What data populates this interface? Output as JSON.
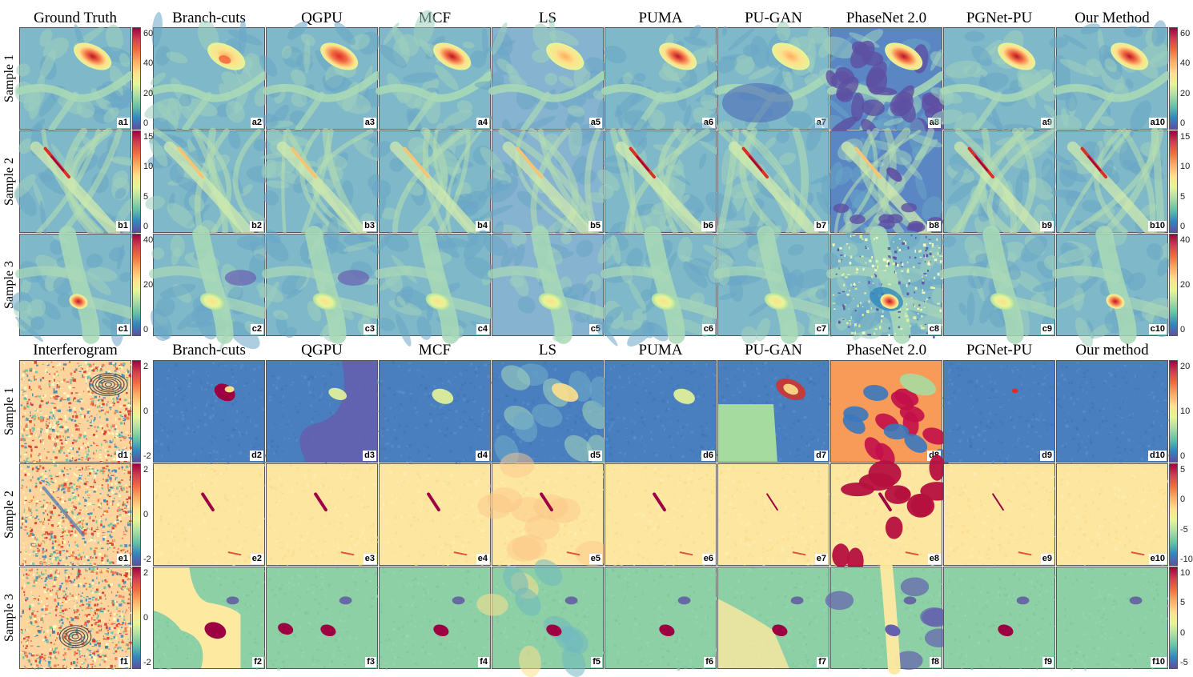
{
  "colors": {
    "spectral": [
      "#5e4fa2",
      "#3288bd",
      "#66c2a5",
      "#abdda4",
      "#e6f598",
      "#fee08b",
      "#fdae61",
      "#f46d43",
      "#d53e4f",
      "#9e0142"
    ],
    "panel_border": "#555555"
  },
  "top": {
    "headers": [
      "Ground Truth",
      "Branch-cuts",
      "QGPU",
      "MCF",
      "LS",
      "PUMA",
      "PU-GAN",
      "PhaseNet 2.0",
      "PGNet-PU",
      "Our Method"
    ],
    "rows": [
      {
        "label": "Sample 1",
        "prefix": "a",
        "left_ticks": [
          "60",
          "40",
          "20",
          "0"
        ],
        "right_ticks": [
          "60",
          "40",
          "20",
          "0"
        ]
      },
      {
        "label": "Sample 2",
        "prefix": "b",
        "left_ticks": [
          "15",
          "10",
          "5",
          "0"
        ],
        "right_ticks": [
          "15",
          "10",
          "5",
          "0"
        ]
      },
      {
        "label": "Sample 3",
        "prefix": "c",
        "left_ticks": [
          "40",
          "20",
          "0"
        ],
        "right_ticks": [
          "40",
          "20",
          "0"
        ]
      }
    ]
  },
  "bottom": {
    "headers": [
      "Interferogram",
      "Branch-cuts",
      "QGPU",
      "MCF",
      "LS",
      "PUMA",
      "PU-GAN",
      "PhaseNet 2.0",
      "PGNet-PU",
      "Our method"
    ],
    "rows": [
      {
        "label": "Sample 1",
        "prefix": "d",
        "left_ticks": [
          "2",
          "0",
          "-2"
        ],
        "right_ticks": [
          "20",
          "10",
          "0"
        ]
      },
      {
        "label": "Sample 2",
        "prefix": "e",
        "left_ticks": [
          "2",
          "0",
          "-2"
        ],
        "right_ticks": [
          "5",
          "0",
          "-5",
          "-10"
        ]
      },
      {
        "label": "Sample 3",
        "prefix": "f",
        "left_ticks": [
          "2",
          "0",
          "-2"
        ],
        "right_ticks": [
          "10",
          "5",
          "0",
          "-5"
        ]
      }
    ]
  }
}
